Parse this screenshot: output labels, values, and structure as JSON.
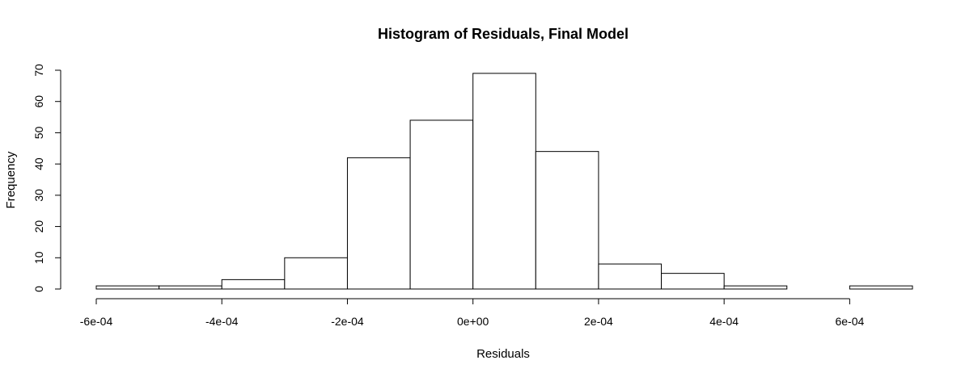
{
  "chart_data": {
    "type": "bar",
    "title": "Histogram of Residuals, Final Model",
    "xlabel": "Residuals",
    "ylabel": "Frequency",
    "bin_edges": [
      -0.0006,
      -0.0005,
      -0.0004,
      -0.0003,
      -0.0002,
      -0.0001,
      0,
      0.0001,
      0.0002,
      0.0003,
      0.0004,
      0.0005,
      0.0006,
      0.0007
    ],
    "values": [
      1,
      1,
      3,
      10,
      42,
      54,
      69,
      44,
      8,
      5,
      1,
      0,
      1
    ],
    "xlim": [
      -0.0006,
      0.0007
    ],
    "ylim": [
      0,
      70
    ],
    "x_ticks": [
      -0.0006,
      -0.0004,
      -0.0002,
      0,
      0.0002,
      0.0004,
      0.0006
    ],
    "x_tick_labels": [
      "-6e-04",
      "-4e-04",
      "-2e-04",
      "0e+00",
      "2e-04",
      "4e-04",
      "6e-04"
    ],
    "y_ticks": [
      0,
      10,
      20,
      30,
      40,
      50,
      60,
      70
    ],
    "y_tick_labels": [
      "0",
      "10",
      "20",
      "30",
      "40",
      "50",
      "60",
      "70"
    ],
    "grid": false,
    "bar_fill": "#ffffff",
    "bar_stroke": "#000000"
  }
}
